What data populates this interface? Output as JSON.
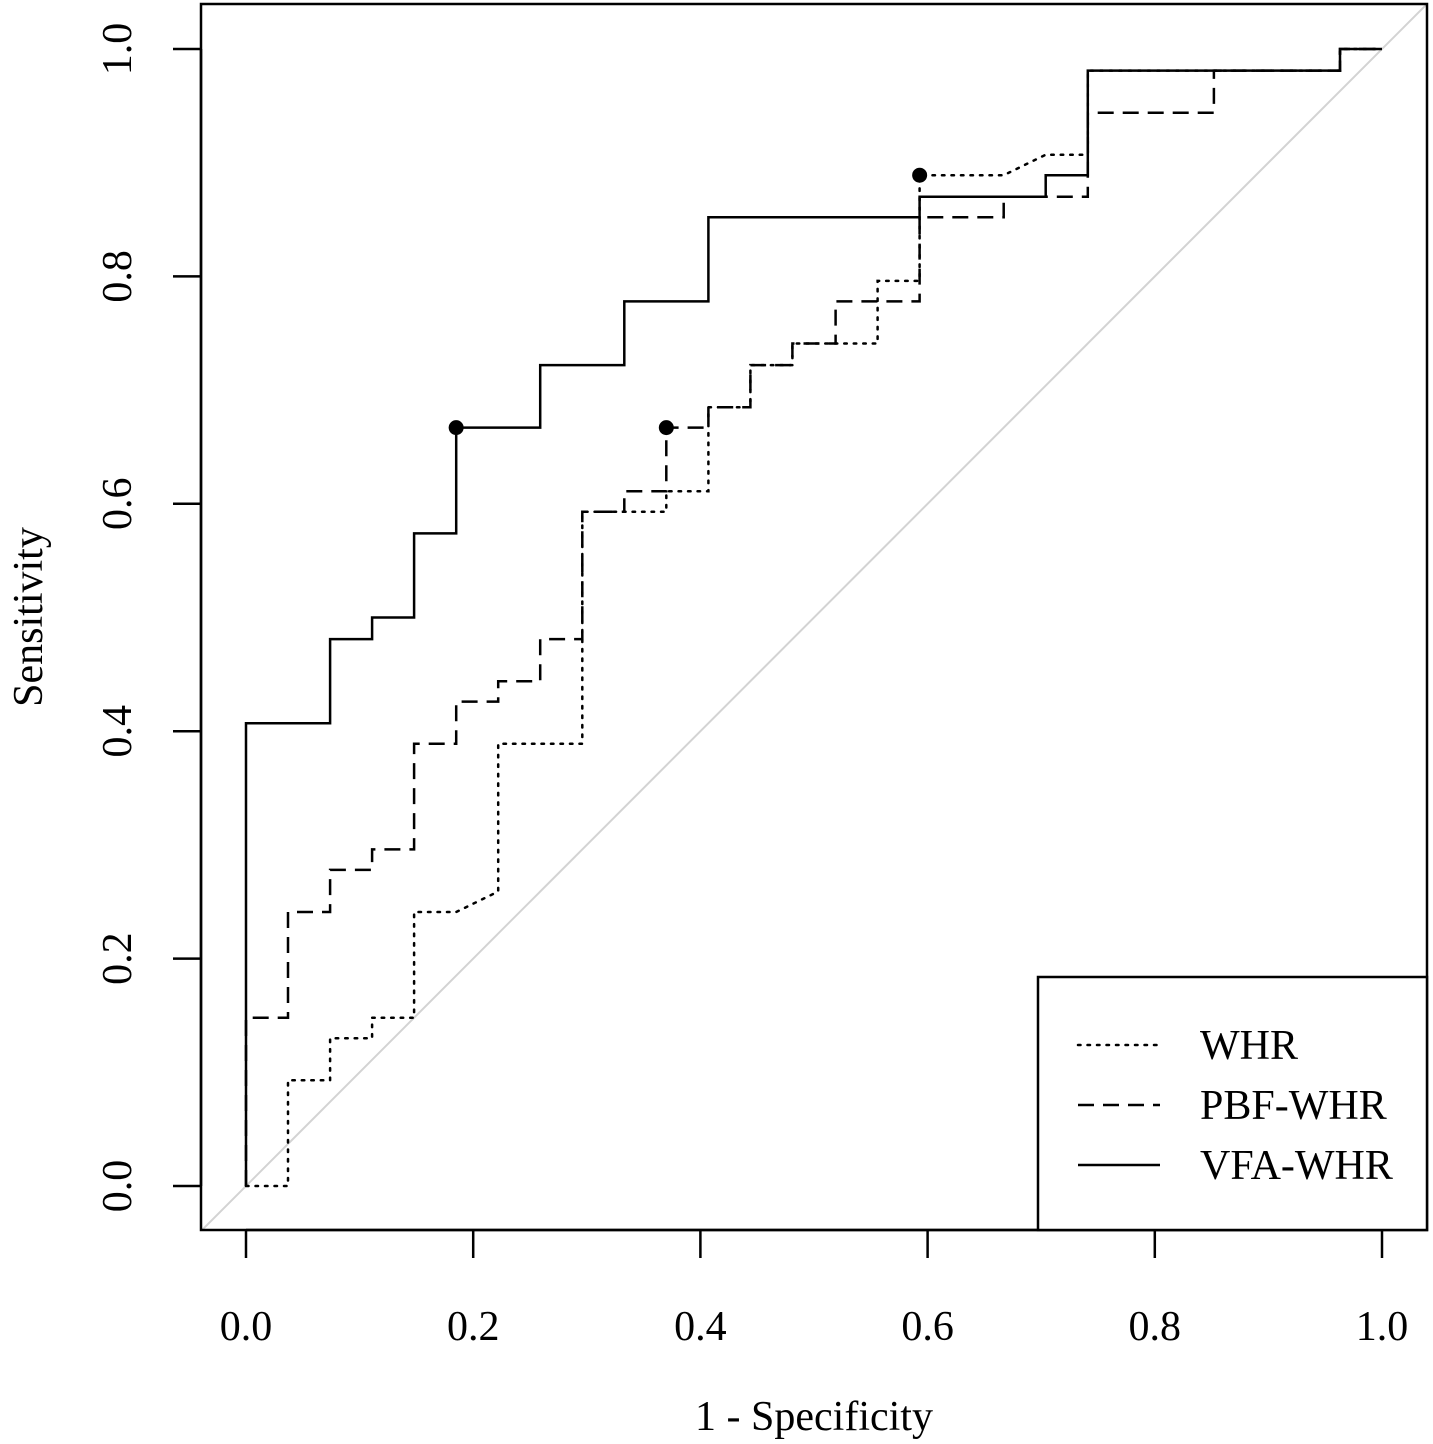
{
  "chart_data": {
    "type": "line",
    "title": "",
    "xlabel": "1 - Specificity",
    "ylabel": "Sensitivity",
    "xlim": [
      0,
      1
    ],
    "ylim": [
      0,
      1
    ],
    "xticks": [
      "0.0",
      "0.2",
      "0.4",
      "0.6",
      "0.8",
      "1.0"
    ],
    "yticks": [
      "0.0",
      "0.2",
      "0.4",
      "0.6",
      "0.8",
      "1.0"
    ],
    "legend_position": "bottom-right",
    "reference_line": {
      "name": "chance diagonal",
      "x": [
        0,
        1
      ],
      "y": [
        0,
        1
      ],
      "color": "#d3d3d3"
    },
    "series": [
      {
        "name": "WHR",
        "linestyle": "dotted",
        "x": [
          0,
          0.037,
          0.037,
          0.074,
          0.074,
          0.111,
          0.111,
          0.148,
          0.148,
          0.185,
          0.222,
          0.222,
          0.296,
          0.296,
          0.333,
          0.37,
          0.37,
          0.407,
          0.407,
          0.444,
          0.444,
          0.481,
          0.481,
          0.556,
          0.556,
          0.593,
          0.593,
          0.667,
          0.704,
          0.741,
          0.741,
          0.852,
          0.852,
          0.963,
          0.963,
          1.0
        ],
        "y": [
          0,
          0,
          0.093,
          0.093,
          0.13,
          0.13,
          0.148,
          0.148,
          0.241,
          0.241,
          0.259,
          0.389,
          0.389,
          0.593,
          0.593,
          0.593,
          0.611,
          0.611,
          0.685,
          0.685,
          0.722,
          0.722,
          0.741,
          0.741,
          0.796,
          0.796,
          0.889,
          0.889,
          0.907,
          0.907,
          0.981,
          0.981,
          0.981,
          0.981,
          1.0,
          1.0
        ]
      },
      {
        "name": "PBF-WHR",
        "linestyle": "dashed",
        "x": [
          0,
          0,
          0.037,
          0.037,
          0.074,
          0.074,
          0.111,
          0.111,
          0.148,
          0.148,
          0.185,
          0.185,
          0.222,
          0.222,
          0.259,
          0.259,
          0.296,
          0.296,
          0.333,
          0.333,
          0.37,
          0.37,
          0.407,
          0.407,
          0.444,
          0.444,
          0.481,
          0.481,
          0.519,
          0.519,
          0.556,
          0.556,
          0.593,
          0.593,
          0.667,
          0.667,
          0.741,
          0.741,
          0.852,
          0.852,
          0.963,
          0.963,
          1.0
        ],
        "y": [
          0,
          0.148,
          0.148,
          0.241,
          0.241,
          0.278,
          0.278,
          0.296,
          0.296,
          0.389,
          0.389,
          0.426,
          0.426,
          0.444,
          0.444,
          0.481,
          0.481,
          0.593,
          0.593,
          0.611,
          0.611,
          0.667,
          0.667,
          0.685,
          0.685,
          0.722,
          0.722,
          0.741,
          0.741,
          0.778,
          0.778,
          0.778,
          0.778,
          0.852,
          0.852,
          0.87,
          0.87,
          0.944,
          0.944,
          0.981,
          0.981,
          1.0,
          1.0
        ]
      },
      {
        "name": "VFA-WHR",
        "linestyle": "solid",
        "x": [
          0,
          0,
          0.074,
          0.074,
          0.111,
          0.111,
          0.148,
          0.148,
          0.185,
          0.185,
          0.259,
          0.259,
          0.333,
          0.333,
          0.407,
          0.407,
          0.593,
          0.593,
          0.704,
          0.704,
          0.741,
          0.741,
          0.963,
          0.963,
          1.0
        ],
        "y": [
          0,
          0.407,
          0.407,
          0.481,
          0.481,
          0.5,
          0.5,
          0.574,
          0.574,
          0.667,
          0.667,
          0.722,
          0.722,
          0.778,
          0.778,
          0.852,
          0.852,
          0.87,
          0.87,
          0.889,
          0.889,
          0.981,
          0.981,
          1.0,
          1.0
        ]
      }
    ],
    "cutoff_points": [
      {
        "series": "VFA-WHR",
        "x": 0.185,
        "y": 0.667
      },
      {
        "series": "PBF-WHR",
        "x": 0.37,
        "y": 0.667
      },
      {
        "series": "WHR",
        "x": 0.593,
        "y": 0.889
      }
    ]
  }
}
